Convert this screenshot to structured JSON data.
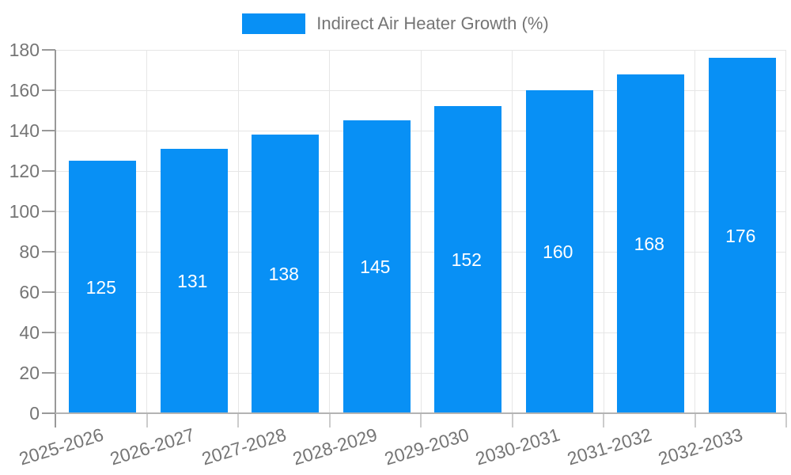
{
  "chart_data": {
    "type": "bar",
    "title": "",
    "legend": {
      "label": "Indirect Air Heater Growth (%)",
      "position": "top"
    },
    "categories": [
      "2025-2026",
      "2026-2027",
      "2027-2028",
      "2028-2029",
      "2029-2030",
      "2030-2031",
      "2031-2032",
      "2032-2033"
    ],
    "series": [
      {
        "name": "Indirect Air Heater Growth (%)",
        "values": [
          125,
          131,
          138,
          145,
          152,
          160,
          168,
          176
        ]
      }
    ],
    "bar_labels": [
      "125",
      "131",
      "138",
      "145",
      "152",
      "160",
      "168",
      "176"
    ],
    "ylim": [
      0,
      180
    ],
    "ytick_step": 20,
    "ytick_labels": [
      "0",
      "20",
      "40",
      "60",
      "80",
      "100",
      "120",
      "140",
      "160",
      "180"
    ],
    "grid": true,
    "legend_position": "top",
    "colors": {
      "bar": "#0890f5",
      "bar_label_text": "#ffffff",
      "axis_text": "#757575",
      "axis_line": "#999999",
      "baseline": "#b3b3b3",
      "gridline": "#e6e6e6",
      "boundary_tick": "#cccccc",
      "background": "#ffffff"
    }
  }
}
